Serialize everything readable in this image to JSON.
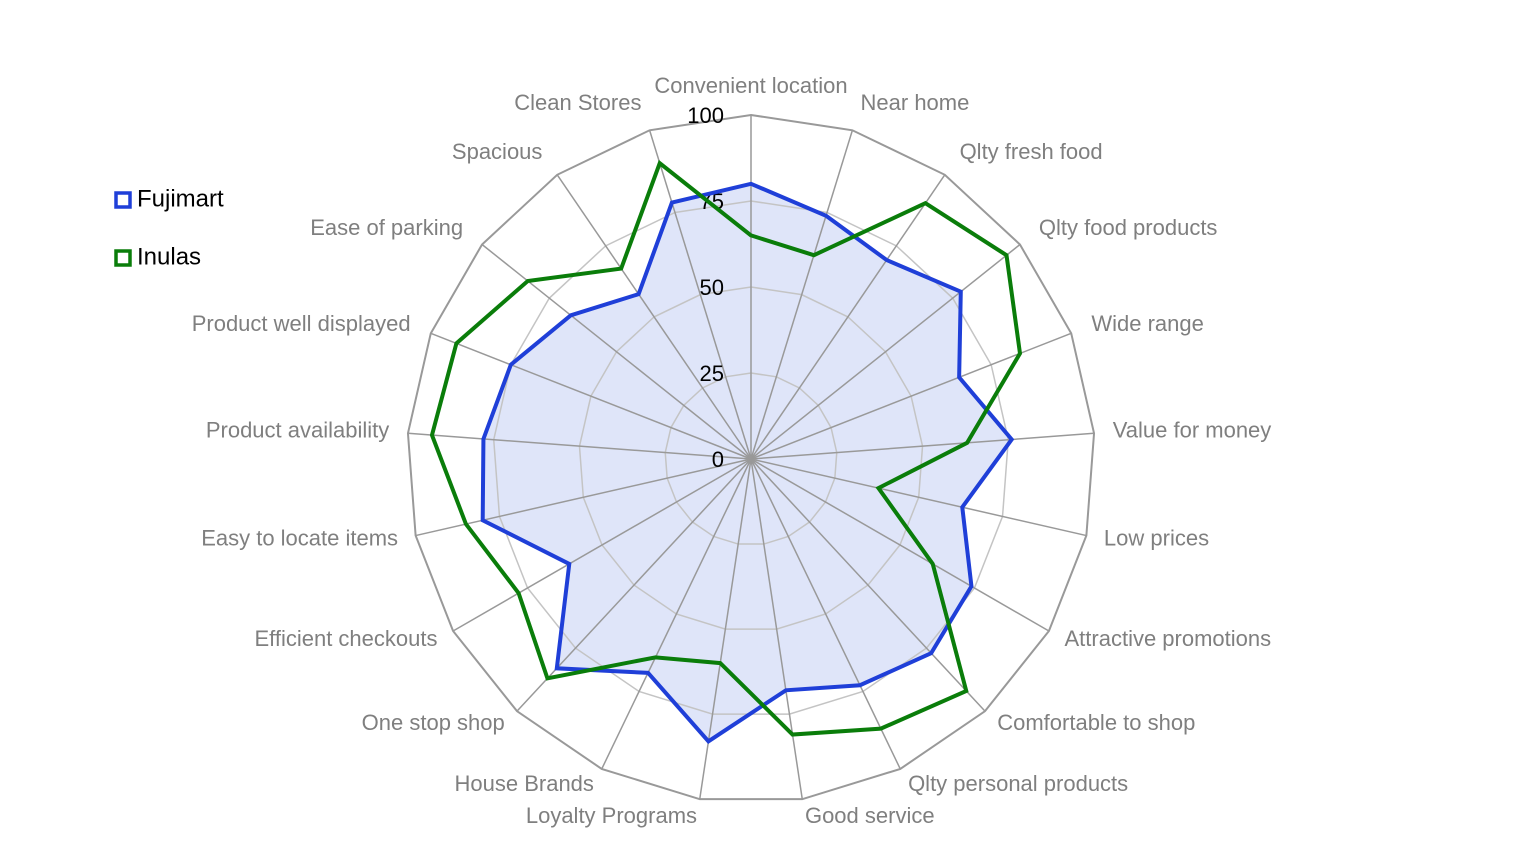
{
  "chart_data": {
    "type": "radar",
    "categories": [
      "Convenient location",
      "Near home",
      "Qlty fresh food",
      "Qlty food products",
      "Wide range",
      "Value for money",
      "Low prices",
      "Attractive promotions",
      "Comfortable to shop",
      "Qlty personal products",
      "Good service",
      "Loyalty Programs",
      "House Brands",
      "One stop shop",
      "Efficient checkouts",
      "Easy to locate items",
      "Product availability",
      "Product well displayed",
      "Ease of parking",
      "Spacious",
      "Clean Stores"
    ],
    "series": [
      {
        "name": "Fujimart",
        "color": "#1f3fd8",
        "fill": "#dfe5f9",
        "values": [
          80,
          74,
          70,
          78,
          65,
          76,
          63,
          74,
          77,
          73,
          68,
          83,
          69,
          83,
          61,
          80,
          78,
          75,
          67,
          58,
          78
        ]
      },
      {
        "name": "Inulas",
        "color": "#0a7d0a",
        "values": [
          65,
          62,
          90,
          95,
          84,
          63,
          38,
          61,
          92,
          87,
          81,
          60,
          64,
          87,
          78,
          85,
          93,
          92,
          83,
          67,
          90
        ]
      }
    ],
    "ylim": [
      0,
      100
    ],
    "yticks": [
      0,
      25,
      50,
      75,
      100
    ],
    "grid": true,
    "legend": "left"
  }
}
